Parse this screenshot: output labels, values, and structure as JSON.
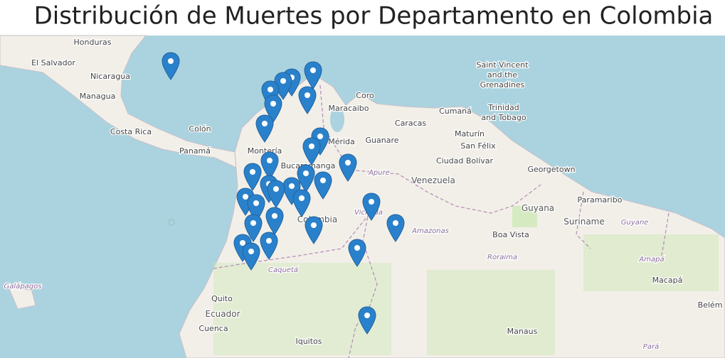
{
  "title": "Distribución de Muertes por Departamento en Colombia",
  "places": [
    "Honduras",
    "El Salvador",
    "Nicaragua",
    "Managua",
    "Costa Rica",
    "Colón",
    "Panamá",
    "Montería",
    "Maracaibo",
    "Coro",
    "Caracas",
    "Cumaná",
    "Maturín",
    "San Félix",
    "Ciudad Bolívar",
    "Mérida",
    "Guanare",
    "Bucaramanga",
    "Apure",
    "Venezuela",
    "Georgetown",
    "Guyana",
    "Paramaribo",
    "Suriname",
    "Guyane",
    "Boa Vista",
    "Roraima",
    "Amapá",
    "Macapá",
    "Belém",
    "Amazonas",
    "Colombia",
    "Vichada",
    "Caquetá",
    "Galápagos",
    "Quito",
    "Ecuador",
    "Cuenca",
    "Iquitos",
    "Manaus",
    "Pará"
  ],
  "multiline": [
    [
      "Saint Vincent",
      "and the",
      "Grenadines"
    ],
    [
      "Trinidad",
      "and Tobago"
    ]
  ]
}
